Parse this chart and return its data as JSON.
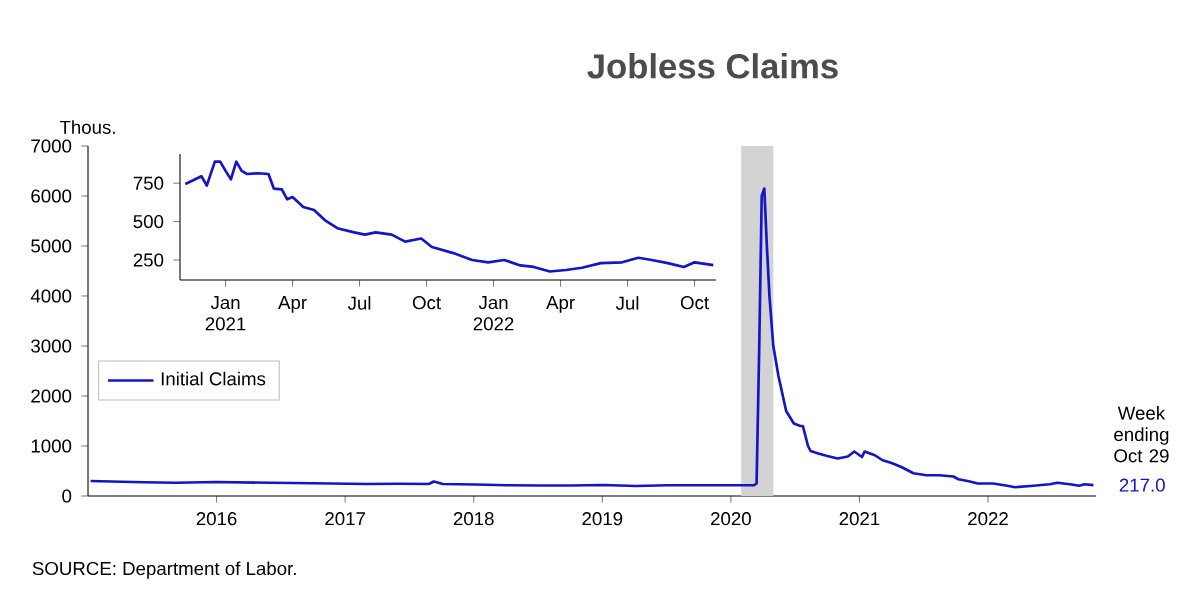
{
  "chart_data": [
    {
      "type": "line",
      "title": "Jobless Claims",
      "ylabel": "Thous.",
      "x": [
        "2015-01-10",
        "2015-03-07",
        "2015-06-06",
        "2015-09-05",
        "2016-01-02",
        "2016-06-04",
        "2016-10-01",
        "2017-03-04",
        "2017-06-03",
        "2017-08-26",
        "2017-09-09",
        "2017-10-07",
        "2018-01-06",
        "2018-04-07",
        "2018-07-07",
        "2018-10-06",
        "2019-01-05",
        "2019-04-06",
        "2019-07-06",
        "2019-10-05",
        "2020-01-04",
        "2020-03-07",
        "2020-03-14",
        "2020-03-21",
        "2020-03-28",
        "2020-04-04",
        "2020-04-11",
        "2020-04-18",
        "2020-05-02",
        "2020-05-16",
        "2020-06-06",
        "2020-06-27",
        "2020-07-18",
        "2020-07-25",
        "2020-08-08",
        "2020-08-15",
        "2020-09-05",
        "2020-10-03",
        "2020-10-31",
        "2020-11-28",
        "2020-12-19",
        "2021-01-09",
        "2021-01-16",
        "2021-02-13",
        "2021-03-06",
        "2021-04-03",
        "2021-05-01",
        "2021-06-05",
        "2021-07-10",
        "2021-08-14",
        "2021-09-25",
        "2021-10-09",
        "2021-11-06",
        "2021-12-04",
        "2022-01-15",
        "2022-02-26",
        "2022-03-19",
        "2022-04-30",
        "2022-06-25",
        "2022-07-16",
        "2022-08-27",
        "2022-09-17",
        "2022-10-01",
        "2022-10-29"
      ],
      "series": [
        {
          "name": "Initial Claims",
          "color": "#1414c8",
          "values": [
            300,
            290,
            275,
            265,
            280,
            265,
            255,
            240,
            245,
            240,
            290,
            240,
            230,
            215,
            210,
            210,
            220,
            200,
            215,
            215,
            215,
            215,
            250,
            2900,
            6000,
            6150,
            5000,
            4000,
            3000,
            2400,
            1700,
            1450,
            1400,
            1400,
            1000,
            900,
            850,
            800,
            750,
            790,
            890,
            780,
            890,
            815,
            715,
            660,
            575,
            455,
            415,
            415,
            390,
            335,
            295,
            250,
            250,
            205,
            175,
            200,
            235,
            265,
            230,
            205,
            235,
            217
          ]
        }
      ],
      "xlim": [
        "2015-01-01",
        "2022-11-05"
      ],
      "xticks": [
        {
          "value": "2016-01-01",
          "label": "2016"
        },
        {
          "value": "2017-01-01",
          "label": "2017"
        },
        {
          "value": "2018-01-01",
          "label": "2018"
        },
        {
          "value": "2019-01-01",
          "label": "2019"
        },
        {
          "value": "2020-01-01",
          "label": "2020"
        },
        {
          "value": "2021-01-01",
          "label": "2021"
        },
        {
          "value": "2022-01-01",
          "label": "2022"
        }
      ],
      "ylim": [
        0,
        7000
      ],
      "yticks": [
        0,
        1000,
        2000,
        3000,
        4000,
        5000,
        6000,
        7000
      ],
      "bands": [
        {
          "axis": "x",
          "from": "2020-02-01",
          "to": "2020-04-30",
          "color": "#d3d3d3"
        }
      ],
      "legend": "left",
      "grid": false,
      "annotations": [
        {
          "text": "Week ending Oct 29",
          "x": "2022-10-29",
          "y": 217
        },
        {
          "text": "217.0",
          "x": "2022-10-29",
          "y": 217
        },
        "SOURCE: Department of Labor."
      ]
    },
    {
      "type": "line",
      "x": [
        "2020-11-07",
        "2020-11-28",
        "2020-12-05",
        "2020-12-19",
        "2020-12-26",
        "2021-01-02",
        "2021-01-09",
        "2021-01-16",
        "2021-01-23",
        "2021-01-30",
        "2021-02-13",
        "2021-02-27",
        "2021-03-06",
        "2021-03-20",
        "2021-03-27",
        "2021-04-03",
        "2021-04-17",
        "2021-05-01",
        "2021-05-15",
        "2021-06-05",
        "2021-06-26",
        "2021-07-10",
        "2021-07-24",
        "2021-08-14",
        "2021-09-04",
        "2021-09-25",
        "2021-10-09",
        "2021-11-06",
        "2021-12-04",
        "2021-12-25",
        "2022-01-15",
        "2022-02-05",
        "2022-02-26",
        "2022-03-19",
        "2022-04-09",
        "2022-04-30",
        "2022-05-28",
        "2022-06-25",
        "2022-07-16",
        "2022-08-06",
        "2022-08-27",
        "2022-09-17",
        "2022-10-01",
        "2022-10-29"
      ],
      "series": [
        {
          "color": "#1414c8",
          "values": [
            745,
            795,
            735,
            890,
            890,
            830,
            775,
            890,
            830,
            810,
            815,
            810,
            715,
            710,
            645,
            660,
            595,
            575,
            510,
            455,
            430,
            415,
            430,
            415,
            370,
            390,
            335,
            295,
            250,
            235,
            250,
            215,
            205,
            175,
            185,
            200,
            230,
            235,
            265,
            250,
            230,
            205,
            235,
            217
          ]
        }
      ],
      "xlim": [
        "2020-11-01",
        "2022-10-31"
      ],
      "xticks": [
        {
          "value": "2021-01-01",
          "label": "Jan 2021"
        },
        {
          "value": "2021-04-01",
          "label": "Apr"
        },
        {
          "value": "2021-07-01",
          "label": "Jul"
        },
        {
          "value": "2021-10-01",
          "label": "Oct"
        },
        {
          "value": "2022-01-01",
          "label": "Jan 2022"
        },
        {
          "value": "2022-04-01",
          "label": "Apr"
        },
        {
          "value": "2022-07-01",
          "label": "Jul"
        },
        {
          "value": "2022-10-01",
          "label": "Oct"
        }
      ],
      "ylim": [
        120,
        940
      ],
      "yticks": [
        250,
        500,
        750
      ],
      "legend": false,
      "grid": false
    }
  ]
}
